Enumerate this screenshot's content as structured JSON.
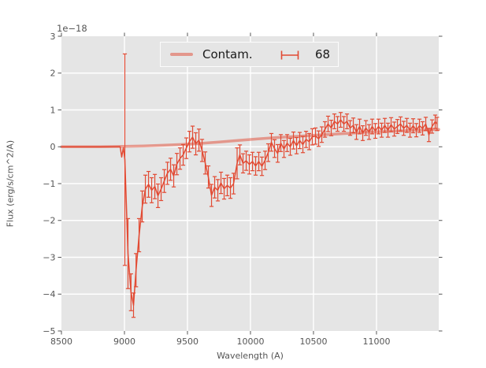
{
  "colors": {
    "series": "#e24a33",
    "contam": "rgba(226,74,51,0.5)",
    "plot_bg": "#e5e5e5",
    "figure_bg": "#ffffff",
    "grid": "#ffffff",
    "tick": "#555555",
    "tick_label": "#555555",
    "axis_label": "#555555",
    "legend_bg": "#e5e5e5",
    "legend_border": "#fcfcfc",
    "legend_text": "#1a1a1a"
  },
  "chart_data": {
    "type": "line",
    "title": "",
    "xlabel": "Wavelength (A)",
    "ylabel": "Flux (erg/s/cm^2/A)",
    "y_offset_label": "1e−18",
    "xlim": [
      8500,
      11494
    ],
    "ylim": [
      -5,
      3
    ],
    "xticks": [
      8500,
      9000,
      9500,
      10000,
      10500,
      11000
    ],
    "yticks": [
      3,
      2,
      1,
      0,
      -1,
      -2,
      -3,
      -4,
      -5
    ],
    "grid": true,
    "legend": {
      "entries": [
        "Contam.",
        "68"
      ],
      "position": "upper center"
    },
    "series": [
      {
        "name": "Contam.",
        "type": "line",
        "color": "rgba(226,74,51,0.5)",
        "linewidth": 3.5,
        "points": [
          [
            8500,
            0
          ],
          [
            8800,
            0
          ],
          [
            9000,
            0.01
          ],
          [
            9150,
            0.02
          ],
          [
            9300,
            0.04
          ],
          [
            9450,
            0.06
          ],
          [
            9600,
            0.09
          ],
          [
            9750,
            0.13
          ],
          [
            9900,
            0.17
          ],
          [
            10050,
            0.21
          ],
          [
            10200,
            0.25
          ],
          [
            10350,
            0.28
          ],
          [
            10500,
            0.31
          ],
          [
            10650,
            0.34
          ],
          [
            10800,
            0.37
          ],
          [
            10950,
            0.4
          ],
          [
            11100,
            0.42
          ],
          [
            11250,
            0.44
          ],
          [
            11400,
            0.46
          ],
          [
            11494,
            0.47
          ]
        ]
      },
      {
        "name": "68",
        "type": "errorbar",
        "color": "#e24a33",
        "linewidth": 1.5,
        "points": [
          [
            8500,
            0,
            0
          ],
          [
            8560,
            0,
            0
          ],
          [
            8620,
            0,
            0
          ],
          [
            8680,
            0,
            0
          ],
          [
            8740,
            0,
            0
          ],
          [
            8800,
            0,
            0
          ],
          [
            8860,
            0,
            0
          ],
          [
            8910,
            0,
            0
          ],
          [
            8945,
            0,
            0
          ],
          [
            8966,
            0,
            0
          ],
          [
            8978,
            -0.28,
            0
          ],
          [
            8991,
            -0.02,
            0
          ],
          [
            9003,
            -0.35,
            2.87
          ],
          [
            9028,
            -2.9,
            0.95
          ],
          [
            9052,
            -3.95,
            0.5
          ],
          [
            9072,
            -4.3,
            0.33
          ],
          [
            9092,
            -3.35,
            0.45
          ],
          [
            9116,
            -2.4,
            0.45
          ],
          [
            9141,
            -1.62,
            0.42
          ],
          [
            9166,
            -1.15,
            0.38
          ],
          [
            9191,
            -1.02,
            0.35
          ],
          [
            9216,
            -1.18,
            0.34
          ],
          [
            9241,
            -1.08,
            0.33
          ],
          [
            9266,
            -1.33,
            0.32
          ],
          [
            9291,
            -1.15,
            0.31
          ],
          [
            9316,
            -0.93,
            0.31
          ],
          [
            9341,
            -0.72,
            0.3
          ],
          [
            9366,
            -0.61,
            0.3
          ],
          [
            9391,
            -0.79,
            0.3
          ],
          [
            9416,
            -0.47,
            0.29
          ],
          [
            9441,
            -0.32,
            0.29
          ],
          [
            9466,
            -0.22,
            0.28
          ],
          [
            9491,
            -0.04,
            0.28
          ],
          [
            9516,
            0.14,
            0.28
          ],
          [
            9541,
            0.26,
            0.3
          ],
          [
            9566,
            0.08,
            0.3
          ],
          [
            9591,
            0.18,
            0.3
          ],
          [
            9616,
            -0.1,
            0.3
          ],
          [
            9641,
            -0.44,
            0.3
          ],
          [
            9666,
            -0.82,
            0.3
          ],
          [
            9691,
            -1.32,
            0.3
          ],
          [
            9716,
            -1.1,
            0.29
          ],
          [
            9741,
            -1.18,
            0.29
          ],
          [
            9766,
            -0.98,
            0.29
          ],
          [
            9791,
            -1.14,
            0.28
          ],
          [
            9816,
            -1.05,
            0.28
          ],
          [
            9841,
            -1.12,
            0.28
          ],
          [
            9866,
            -1.0,
            0.28
          ],
          [
            9894,
            -0.45,
            0.42
          ],
          [
            9916,
            -0.22,
            0.27
          ],
          [
            9941,
            -0.45,
            0.26
          ],
          [
            9966,
            -0.38,
            0.26
          ],
          [
            9991,
            -0.48,
            0.26
          ],
          [
            10016,
            -0.4,
            0.25
          ],
          [
            10041,
            -0.52,
            0.25
          ],
          [
            10066,
            -0.4,
            0.25
          ],
          [
            10091,
            -0.53,
            0.25
          ],
          [
            10116,
            -0.37,
            0.25
          ],
          [
            10141,
            -0.16,
            0.24
          ],
          [
            10166,
            0.12,
            0.24
          ],
          [
            10191,
            -0.05,
            0.24
          ],
          [
            10216,
            -0.18,
            0.24
          ],
          [
            10241,
            0.1,
            0.23
          ],
          [
            10266,
            -0.06,
            0.23
          ],
          [
            10291,
            0.1,
            0.23
          ],
          [
            10316,
            0,
            0.23
          ],
          [
            10341,
            0.17,
            0.23
          ],
          [
            10366,
            0.03,
            0.22
          ],
          [
            10391,
            0.17,
            0.22
          ],
          [
            10416,
            0.06,
            0.22
          ],
          [
            10441,
            0.2,
            0.22
          ],
          [
            10466,
            0.14,
            0.22
          ],
          [
            10491,
            0.27,
            0.22
          ],
          [
            10516,
            0.29,
            0.22
          ],
          [
            10541,
            0.22,
            0.21
          ],
          [
            10566,
            0.33,
            0.21
          ],
          [
            10591,
            0.47,
            0.21
          ],
          [
            10616,
            0.62,
            0.21
          ],
          [
            10641,
            0.51,
            0.21
          ],
          [
            10666,
            0.69,
            0.2
          ],
          [
            10691,
            0.62,
            0.2
          ],
          [
            10716,
            0.73,
            0.2
          ],
          [
            10741,
            0.62,
            0.2
          ],
          [
            10766,
            0.69,
            0.2
          ],
          [
            10791,
            0.51,
            0.2
          ],
          [
            10816,
            0.58,
            0.2
          ],
          [
            10841,
            0.4,
            0.2
          ],
          [
            10866,
            0.55,
            0.2
          ],
          [
            10891,
            0.37,
            0.2
          ],
          [
            10916,
            0.51,
            0.2
          ],
          [
            10941,
            0.4,
            0.2
          ],
          [
            10966,
            0.55,
            0.2
          ],
          [
            10991,
            0.43,
            0.2
          ],
          [
            11016,
            0.55,
            0.2
          ],
          [
            11041,
            0.45,
            0.19
          ],
          [
            11066,
            0.58,
            0.19
          ],
          [
            11091,
            0.45,
            0.19
          ],
          [
            11116,
            0.6,
            0.19
          ],
          [
            11141,
            0.48,
            0.19
          ],
          [
            11166,
            0.55,
            0.19
          ],
          [
            11191,
            0.62,
            0.19
          ],
          [
            11216,
            0.5,
            0.19
          ],
          [
            11241,
            0.58,
            0.19
          ],
          [
            11266,
            0.45,
            0.19
          ],
          [
            11291,
            0.57,
            0.19
          ],
          [
            11316,
            0.45,
            0.18
          ],
          [
            11341,
            0.57,
            0.18
          ],
          [
            11366,
            0.5,
            0.18
          ],
          [
            11391,
            0.62,
            0.18
          ],
          [
            11416,
            0.32,
            0.18
          ],
          [
            11441,
            0.55,
            0.18
          ],
          [
            11466,
            0.68,
            0.18
          ],
          [
            11481,
            0.62,
            0.18
          ]
        ]
      }
    ]
  }
}
